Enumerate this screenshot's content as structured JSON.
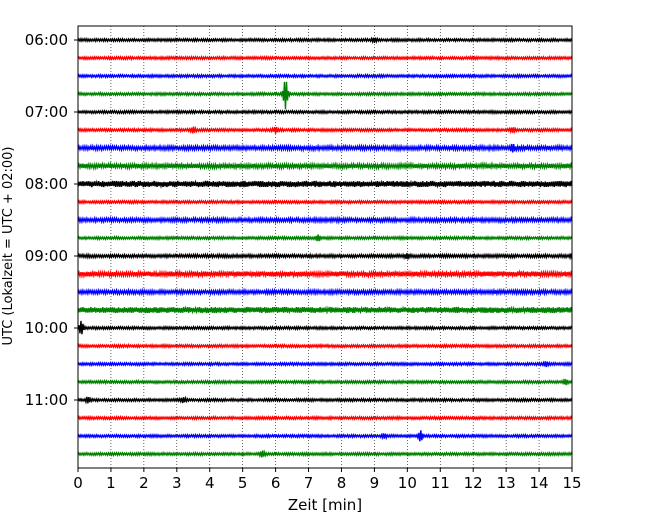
{
  "chart_data": {
    "type": "line",
    "title": "",
    "xlabel": "Zeit  [min]",
    "ylabel": "UTC (Lokalzeit = UTC + 02:00)",
    "xlim": [
      0,
      15
    ],
    "x_ticks": [
      0,
      1,
      2,
      3,
      4,
      5,
      6,
      7,
      8,
      9,
      10,
      11,
      12,
      13,
      14,
      15
    ],
    "y_tick_labels": [
      "06:00",
      "07:00",
      "08:00",
      "09:00",
      "10:00",
      "11:00"
    ],
    "grid": "vertical dotted",
    "trace_colors": [
      "#000000",
      "#ff0000",
      "#0000ff",
      "#008000"
    ],
    "rows": [
      {
        "start": "06:00",
        "color": "#000000",
        "amplitude": 1.0,
        "events": [
          {
            "x": 9.0,
            "amp": 1.6
          }
        ]
      },
      {
        "start": "06:15",
        "color": "#ff0000",
        "amplitude": 1.0,
        "events": []
      },
      {
        "start": "06:30",
        "color": "#0000ff",
        "amplitude": 1.0,
        "events": []
      },
      {
        "start": "06:45",
        "color": "#008000",
        "amplitude": 1.0,
        "events": [
          {
            "x": 6.3,
            "amp": 14
          }
        ]
      },
      {
        "start": "07:00",
        "color": "#000000",
        "amplitude": 1.0,
        "events": []
      },
      {
        "start": "07:15",
        "color": "#ff0000",
        "amplitude": 1.0,
        "events": [
          {
            "x": 3.5,
            "amp": 2.5
          },
          {
            "x": 6.0,
            "amp": 2.5
          },
          {
            "x": 13.2,
            "amp": 2
          }
        ]
      },
      {
        "start": "07:30",
        "color": "#0000ff",
        "amplitude": 1.6,
        "events": [
          {
            "x": 13.2,
            "amp": 3
          }
        ]
      },
      {
        "start": "07:45",
        "color": "#008000",
        "amplitude": 1.8,
        "events": []
      },
      {
        "start": "08:00",
        "color": "#000000",
        "amplitude": 2.4,
        "events": []
      },
      {
        "start": "08:15",
        "color": "#ff0000",
        "amplitude": 1.0,
        "events": []
      },
      {
        "start": "08:30",
        "color": "#0000ff",
        "amplitude": 1.5,
        "events": []
      },
      {
        "start": "08:45",
        "color": "#008000",
        "amplitude": 1.0,
        "events": [
          {
            "x": 7.3,
            "amp": 2.5
          }
        ]
      },
      {
        "start": "09:00",
        "color": "#000000",
        "amplitude": 1.2,
        "events": [
          {
            "x": 10.0,
            "amp": 2
          },
          {
            "x": 15.0,
            "amp": 2
          }
        ]
      },
      {
        "start": "09:15",
        "color": "#ff0000",
        "amplitude": 2.0,
        "events": []
      },
      {
        "start": "09:30",
        "color": "#0000ff",
        "amplitude": 1.5,
        "events": []
      },
      {
        "start": "09:45",
        "color": "#008000",
        "amplitude": 2.3,
        "events": []
      },
      {
        "start": "10:00",
        "color": "#000000",
        "amplitude": 1.0,
        "events": [
          {
            "x": 0.1,
            "amp": 6
          }
        ]
      },
      {
        "start": "10:15",
        "color": "#ff0000",
        "amplitude": 1.0,
        "events": []
      },
      {
        "start": "10:30",
        "color": "#0000ff",
        "amplitude": 1.0,
        "events": [
          {
            "x": 14.2,
            "amp": 2
          }
        ]
      },
      {
        "start": "10:45",
        "color": "#008000",
        "amplitude": 1.0,
        "events": [
          {
            "x": 14.8,
            "amp": 2
          }
        ]
      },
      {
        "start": "11:00",
        "color": "#000000",
        "amplitude": 1.0,
        "events": [
          {
            "x": 0.3,
            "amp": 2.5
          },
          {
            "x": 3.2,
            "amp": 2
          }
        ]
      },
      {
        "start": "11:15",
        "color": "#ff0000",
        "amplitude": 1.0,
        "events": []
      },
      {
        "start": "11:30",
        "color": "#0000ff",
        "amplitude": 1.0,
        "events": [
          {
            "x": 10.4,
            "amp": 4.5
          },
          {
            "x": 9.3,
            "amp": 1.8
          }
        ]
      },
      {
        "start": "11:45",
        "color": "#008000",
        "amplitude": 1.0,
        "events": [
          {
            "x": 5.6,
            "amp": 2.5
          }
        ]
      }
    ]
  }
}
